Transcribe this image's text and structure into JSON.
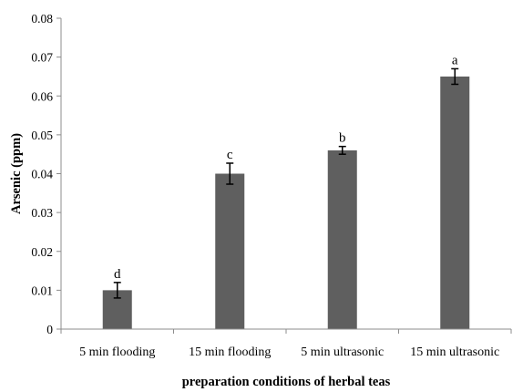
{
  "chart_data": {
    "type": "bar",
    "title": "",
    "xlabel": "preparation  conditions of herbal teas",
    "ylabel": "Arsenic (ppm)",
    "categories": [
      "5 min flooding",
      "15 min flooding",
      "5 min ultrasonic",
      "15 min ultrasonic"
    ],
    "values": [
      0.01,
      0.04,
      0.046,
      0.065
    ],
    "errors": [
      0.002,
      0.0027,
      0.001,
      0.002
    ],
    "significance_letters": [
      "d",
      "c",
      "b",
      "a"
    ],
    "ylim": [
      0,
      0.08
    ],
    "yticks": [
      "0",
      "0.01",
      "0.02",
      "0.03",
      "0.04",
      "0.05",
      "0.06",
      "0.07",
      "0.08"
    ],
    "grid": false,
    "legend": "none",
    "colors": {
      "bar": "#5f5f5f",
      "axis": "#8c8c8c",
      "error": "#000000"
    }
  }
}
